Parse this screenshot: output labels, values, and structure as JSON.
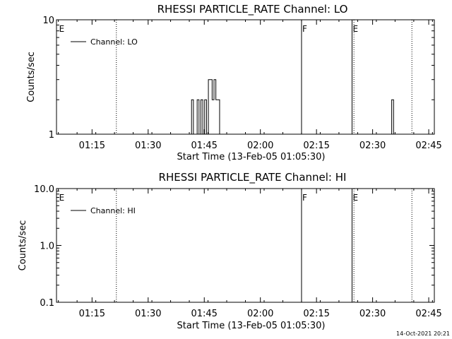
{
  "footer": {
    "timestamp": "14-Oct-2021 20:21"
  },
  "chart_data": [
    {
      "type": "line",
      "title": "RHESSI PARTICLE_RATE Channel: LO",
      "xlabel": "Start Time (13-Feb-05 01:05:30)",
      "ylabel": "Counts/sec",
      "yscale": "log",
      "ylim": [
        1,
        10
      ],
      "yticks": [
        1,
        10
      ],
      "ytick_labels": [
        "1",
        "10"
      ],
      "xlim_minutes": [
        65.5,
        166.5
      ],
      "xticks_minutes": [
        75,
        90,
        105,
        120,
        135,
        150,
        165
      ],
      "xtick_labels": [
        "01:15",
        "01:30",
        "01:45",
        "02:00",
        "02:15",
        "02:30",
        "02:45"
      ],
      "legend": {
        "label": "Channel: LO",
        "placement": "top-left"
      },
      "markers": [
        {
          "minute": 66,
          "letter": "E",
          "style": "none"
        },
        {
          "minute": 81.5,
          "letter": "",
          "style": "dotted"
        },
        {
          "minute": 131,
          "letter": "F",
          "style": "solid"
        },
        {
          "minute": 144.5,
          "letter": "E",
          "style": "solid"
        },
        {
          "minute": 145,
          "letter": "",
          "style": "dotted"
        },
        {
          "minute": 160.5,
          "letter": "",
          "style": "dotted"
        }
      ],
      "series": [
        {
          "name": "Channel: LO",
          "x": [
            101.2,
            101.6,
            102.1,
            102.6,
            103.1,
            103.6,
            104.1,
            104.6,
            105.1,
            105.6,
            106.1,
            106.6,
            107.1,
            107.6,
            108.1,
            108.6,
            109.1,
            109.6,
            110.1,
            110.6,
            154.6,
            155.1,
            155.6
          ],
          "y": [
            1,
            2,
            1,
            1,
            2,
            1,
            2,
            1,
            2,
            1,
            3,
            3,
            2,
            3,
            2,
            2,
            1,
            1,
            1,
            1,
            1,
            2,
            1
          ]
        }
      ]
    },
    {
      "type": "line",
      "title": "RHESSI PARTICLE_RATE Channel: HI",
      "xlabel": "Start Time (13-Feb-05 01:05:30)",
      "ylabel": "Counts/sec",
      "yscale": "log",
      "ylim": [
        0.1,
        10
      ],
      "yticks": [
        0.1,
        1,
        10
      ],
      "ytick_labels": [
        "0.1",
        "1.0",
        "10.0"
      ],
      "xlim_minutes": [
        65.5,
        166.5
      ],
      "xticks_minutes": [
        75,
        90,
        105,
        120,
        135,
        150,
        165
      ],
      "xtick_labels": [
        "01:15",
        "01:30",
        "01:45",
        "02:00",
        "02:15",
        "02:30",
        "02:45"
      ],
      "legend": {
        "label": "Channel: HI",
        "placement": "top-left"
      },
      "markers": [
        {
          "minute": 66,
          "letter": "E",
          "style": "none"
        },
        {
          "minute": 81.5,
          "letter": "",
          "style": "dotted"
        },
        {
          "minute": 131,
          "letter": "F",
          "style": "solid"
        },
        {
          "minute": 144.5,
          "letter": "E",
          "style": "solid"
        },
        {
          "minute": 145,
          "letter": "",
          "style": "dotted"
        },
        {
          "minute": 160.5,
          "letter": "",
          "style": "dotted"
        }
      ],
      "series": [
        {
          "name": "Channel: HI",
          "x": [],
          "y": []
        }
      ]
    }
  ]
}
